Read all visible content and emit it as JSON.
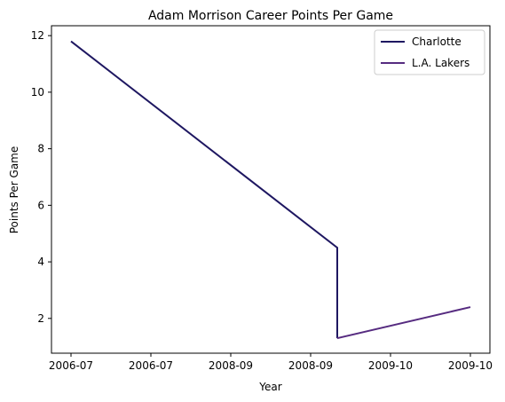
{
  "chart_data": {
    "type": "line",
    "title": "Adam Morrison Career Points Per Game",
    "xlabel": "Year",
    "ylabel": "Points Per Game",
    "x_ticks": [
      "2006-07",
      "2006-07",
      "2008-09",
      "2008-09",
      "2009-10",
      "2009-10"
    ],
    "y_ticks": [
      2,
      4,
      6,
      8,
      10,
      12
    ],
    "ylim": [
      0.77,
      12.35
    ],
    "grid": false,
    "legend_position": "top-right",
    "series": [
      {
        "name": "Charlotte",
        "color": "#1e1761",
        "points": [
          {
            "x": "2006-07",
            "y": 11.8
          },
          {
            "x": "2008-09",
            "y": 4.5
          },
          {
            "x": "2008-09",
            "y": 1.3
          }
        ]
      },
      {
        "name": "L.A. Lakers",
        "color": "#562b80",
        "points": [
          {
            "x": "2008-09",
            "y": 1.3
          },
          {
            "x": "2009-10",
            "y": 2.4
          }
        ]
      }
    ]
  }
}
